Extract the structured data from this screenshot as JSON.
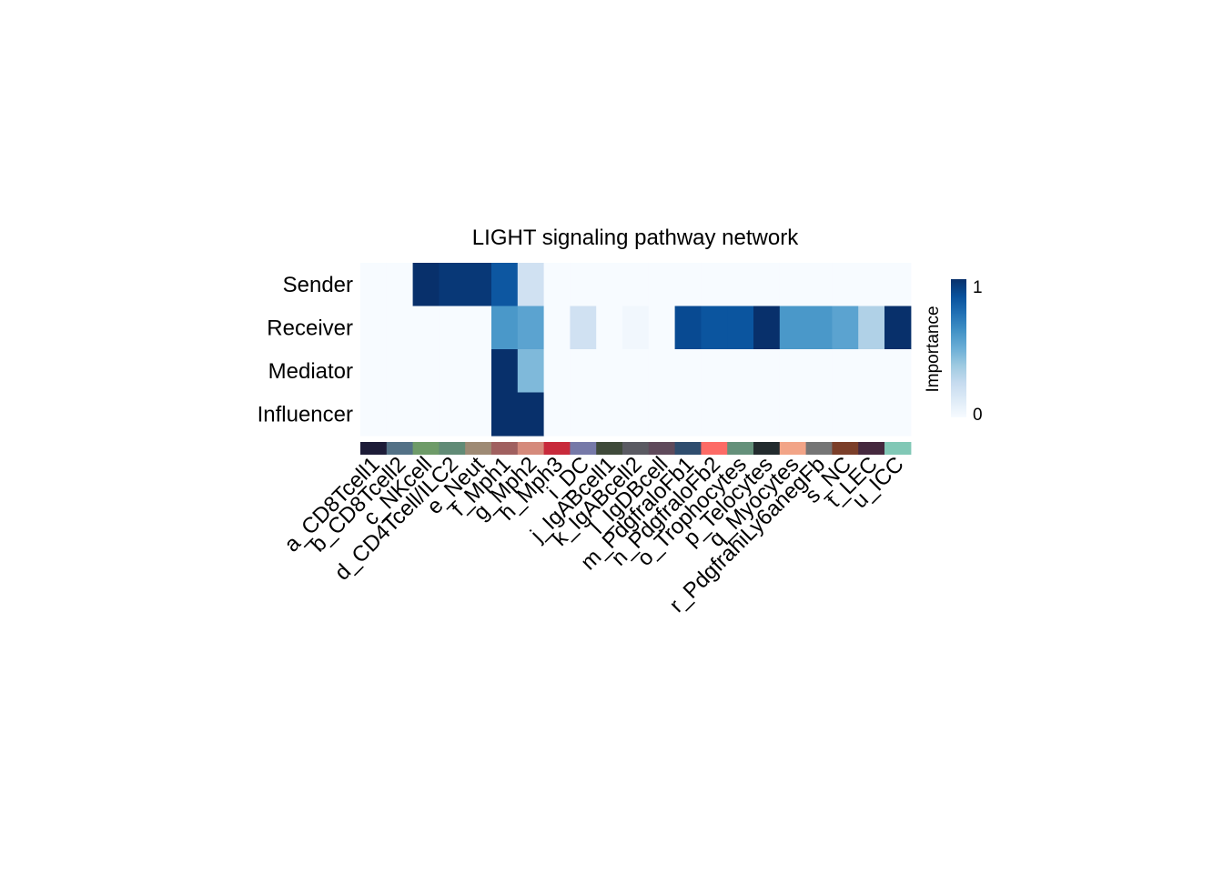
{
  "chart_data": {
    "type": "heatmap",
    "title": "LIGHT signaling pathway network",
    "rows": [
      "Sender",
      "Receiver",
      "Mediator",
      "Influencer"
    ],
    "columns": [
      "a_CD8Tcell1",
      "b_CD8Tcell2",
      "c_NKcell",
      "d_CD4Tcell/ILC2",
      "e_Neut",
      "f_Mph1",
      "g_Mph2",
      "h_Mph3",
      "i_DC",
      "j_IgABcell1",
      "k_IgABcell2",
      "l_IgDBcell",
      "m_PdgfraloFb1",
      "n_PdgfraloFb2",
      "o_Trophocytes",
      "p_Telocytes",
      "q_Myocytes",
      "r_PdgfrahiLy6anegFb",
      "s_NC",
      "t_LEC",
      "u_ICC"
    ],
    "column_colors": [
      "#1d1c38",
      "#537186",
      "#6e9b68",
      "#618b76",
      "#9e8a74",
      "#a0605f",
      "#d58a7b",
      "#c82a3b",
      "#7679a8",
      "#3f4a3a",
      "#5a5a62",
      "#5f4a5b",
      "#2f4d6e",
      "#fd6b66",
      "#64907a",
      "#222b2e",
      "#f2a487",
      "#757575",
      "#7b3e29",
      "#45283e",
      "#81c8b6"
    ],
    "values": [
      [
        0,
        0,
        1,
        0.97,
        0.97,
        0.85,
        0.2,
        0,
        0,
        0,
        0,
        0,
        0,
        0,
        0,
        0,
        0,
        0,
        0,
        0,
        0
      ],
      [
        0,
        0,
        0,
        0,
        0,
        0.6,
        0.55,
        0,
        0.2,
        0,
        0.03,
        0,
        0.9,
        0.86,
        0.86,
        1,
        0.6,
        0.6,
        0.55,
        0.32,
        1
      ],
      [
        0,
        0,
        0,
        0,
        0,
        1,
        0.45,
        0,
        0,
        0,
        0,
        0,
        0,
        0,
        0,
        0,
        0,
        0,
        0,
        0,
        0
      ],
      [
        0,
        0,
        0,
        0,
        0,
        1,
        1,
        0,
        0,
        0,
        0,
        0,
        0,
        0,
        0,
        0,
        0,
        0,
        0,
        0,
        0
      ]
    ],
    "colorbar": {
      "label": "Importance",
      "min": 0,
      "max": 1,
      "tick_labels": [
        "0",
        "1"
      ],
      "colors": [
        "#f7fbff",
        "#deebf7",
        "#c6dbef",
        "#9ecae1",
        "#6baed6",
        "#4292c6",
        "#2171b5",
        "#08519c",
        "#08306b"
      ]
    }
  }
}
